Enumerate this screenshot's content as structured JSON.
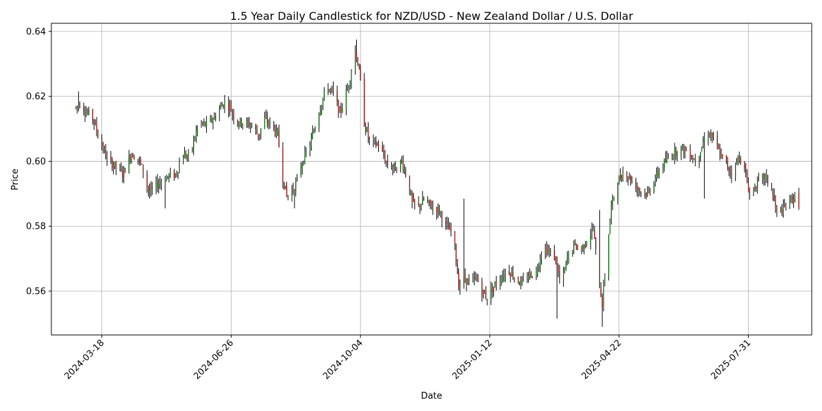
{
  "chart_data": {
    "type": "candlestick",
    "title": "1.5 Year Daily Candlestick for NZD/USD - New Zealand Dollar / U.S. Dollar",
    "xlabel": "Date",
    "ylabel": "Price",
    "grid": true,
    "x_range": [
      "2024-02-08",
      "2025-09-18"
    ],
    "ylim": [
      0.5465,
      0.6425
    ],
    "x_ticks": [
      "2024-03-18",
      "2024-06-26",
      "2024-10-04",
      "2025-01-12",
      "2025-04-22",
      "2025-07-31"
    ],
    "y_ticks": [
      0.56,
      0.58,
      0.6,
      0.62,
      0.64
    ],
    "y_tick_labels": [
      "0.56",
      "0.58",
      "0.60",
      "0.62",
      "0.64"
    ],
    "colors": {
      "up": "#006400",
      "down": "#8b0000",
      "wick": "#000000",
      "grid": "#b0b0b0"
    },
    "anchors": [
      [
        "2024-02-27",
        0.6165
      ],
      [
        "2024-03-01",
        0.618
      ],
      [
        "2024-03-06",
        0.615
      ],
      [
        "2024-03-11",
        0.6135
      ],
      [
        "2024-03-15",
        0.608
      ],
      [
        "2024-03-19",
        0.604
      ],
      [
        "2024-03-22",
        0.6005
      ],
      [
        "2024-03-28",
        0.5985
      ],
      [
        "2024-04-03",
        0.596
      ],
      [
        "2024-04-10",
        0.6025
      ],
      [
        "2024-04-15",
        0.601
      ],
      [
        "2024-04-18",
        0.598
      ],
      [
        "2024-04-24",
        0.59
      ],
      [
        "2024-04-30",
        0.593
      ],
      [
        "2024-05-06",
        0.595
      ],
      [
        "2024-05-14",
        0.596
      ],
      [
        "2024-05-20",
        0.602
      ],
      [
        "2024-05-25",
        0.6015
      ],
      [
        "2024-06-01",
        0.612
      ],
      [
        "2024-06-07",
        0.611
      ],
      [
        "2024-06-14",
        0.614
      ],
      [
        "2024-06-20",
        0.618
      ],
      [
        "2024-06-25",
        0.617
      ],
      [
        "2024-06-30",
        0.612
      ],
      [
        "2024-07-05",
        0.612
      ],
      [
        "2024-07-12",
        0.611
      ],
      [
        "2024-07-17",
        0.608
      ],
      [
        "2024-07-22",
        0.613
      ],
      [
        "2024-07-27",
        0.611
      ],
      [
        "2024-08-01",
        0.608
      ],
      [
        "2024-08-05",
        0.595
      ],
      [
        "2024-08-08",
        0.589
      ],
      [
        "2024-08-12",
        0.591
      ],
      [
        "2024-08-15",
        0.593
      ],
      [
        "2024-08-20",
        0.6
      ],
      [
        "2024-08-26",
        0.605
      ],
      [
        "2024-08-30",
        0.611
      ],
      [
        "2024-09-03",
        0.617
      ],
      [
        "2024-09-08",
        0.623
      ],
      [
        "2024-09-13",
        0.621
      ],
      [
        "2024-09-18",
        0.615
      ],
      [
        "2024-09-22",
        0.619
      ],
      [
        "2024-09-26",
        0.626
      ],
      [
        "2024-09-30",
        0.634
      ],
      [
        "2024-10-03",
        0.628
      ],
      [
        "2024-10-07",
        0.612
      ],
      [
        "2024-10-11",
        0.606
      ],
      [
        "2024-10-18",
        0.605
      ],
      [
        "2024-10-25",
        0.599
      ],
      [
        "2024-10-31",
        0.598
      ],
      [
        "2024-11-05",
        0.6
      ],
      [
        "2024-11-09",
        0.595
      ],
      [
        "2024-11-13",
        0.587
      ],
      [
        "2024-11-18",
        0.586
      ],
      [
        "2024-11-22",
        0.588
      ],
      [
        "2024-11-28",
        0.586
      ],
      [
        "2024-12-04",
        0.585
      ],
      [
        "2024-12-09",
        0.58
      ],
      [
        "2024-12-15",
        0.577
      ],
      [
        "2024-12-19",
        0.562
      ],
      [
        "2024-12-24",
        0.564
      ],
      [
        "2024-12-28",
        0.562
      ],
      [
        "2025-01-02",
        0.564
      ],
      [
        "2025-01-06",
        0.56
      ],
      [
        "2025-01-10",
        0.558
      ],
      [
        "2025-01-14",
        0.561
      ],
      [
        "2025-01-20",
        0.564
      ],
      [
        "2025-01-26",
        0.567
      ],
      [
        "2025-02-01",
        0.564
      ],
      [
        "2025-02-06",
        0.562
      ],
      [
        "2025-02-11",
        0.565
      ],
      [
        "2025-02-17",
        0.566
      ],
      [
        "2025-02-22",
        0.574
      ],
      [
        "2025-02-27",
        0.572
      ],
      [
        "2025-03-04",
        0.57
      ],
      [
        "2025-03-08",
        0.561
      ],
      [
        "2025-03-13",
        0.57
      ],
      [
        "2025-03-18",
        0.574
      ],
      [
        "2025-03-24",
        0.573
      ],
      [
        "2025-03-28",
        0.576
      ],
      [
        "2025-04-02",
        0.579
      ],
      [
        "2025-04-06",
        0.565
      ],
      [
        "2025-04-09",
        0.556
      ],
      [
        "2025-04-12",
        0.57
      ],
      [
        "2025-04-16",
        0.586
      ],
      [
        "2025-04-21",
        0.594
      ],
      [
        "2025-04-26",
        0.597
      ],
      [
        "2025-05-02",
        0.594
      ],
      [
        "2025-05-08",
        0.591
      ],
      [
        "2025-05-14",
        0.59
      ],
      [
        "2025-05-20",
        0.595
      ],
      [
        "2025-05-26",
        0.599
      ],
      [
        "2025-06-01",
        0.602
      ],
      [
        "2025-06-08",
        0.604
      ],
      [
        "2025-06-15",
        0.603
      ],
      [
        "2025-06-20",
        0.6
      ],
      [
        "2025-06-26",
        0.606
      ],
      [
        "2025-07-01",
        0.609
      ],
      [
        "2025-07-05",
        0.606
      ],
      [
        "2025-07-09",
        0.602
      ],
      [
        "2025-07-14",
        0.599
      ],
      [
        "2025-07-19",
        0.596
      ],
      [
        "2025-07-24",
        0.602
      ],
      [
        "2025-07-28",
        0.597
      ],
      [
        "2025-08-01",
        0.59
      ],
      [
        "2025-08-06",
        0.593
      ],
      [
        "2025-08-12",
        0.595
      ],
      [
        "2025-08-17",
        0.593
      ],
      [
        "2025-08-22",
        0.584
      ],
      [
        "2025-08-27",
        0.585
      ],
      [
        "2025-09-01",
        0.588
      ],
      [
        "2025-09-05",
        0.589
      ],
      [
        "2025-09-08",
        0.587
      ]
    ],
    "spikes": [
      [
        "2024-02-29",
        0.6215,
        "high"
      ],
      [
        "2024-05-06",
        0.5855,
        "low"
      ],
      [
        "2024-08-14",
        0.5855,
        "low"
      ],
      [
        "2024-10-01",
        0.6375,
        "high"
      ],
      [
        "2024-12-22",
        0.5885,
        "high"
      ],
      [
        "2025-03-05",
        0.5515,
        "low"
      ],
      [
        "2025-04-07",
        0.585,
        "high"
      ],
      [
        "2025-04-09",
        0.549,
        "low"
      ],
      [
        "2025-06-28",
        0.5885,
        "low"
      ]
    ]
  }
}
